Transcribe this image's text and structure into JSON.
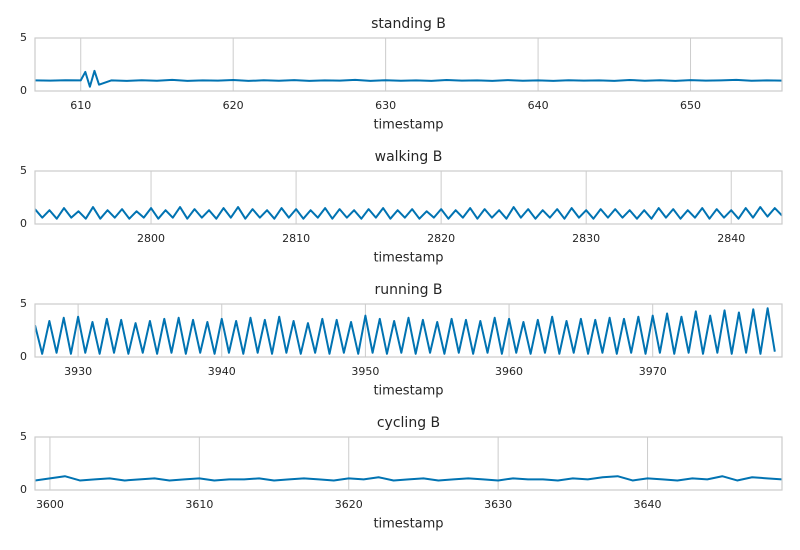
{
  "chart_data": [
    {
      "type": "line",
      "title": "standing B",
      "xlabel": "timestamp",
      "color": "#0173b2",
      "grid": true,
      "xlim": [
        607,
        656
      ],
      "xticks": [
        610,
        620,
        630,
        640,
        650
      ],
      "ylim": [
        0,
        5
      ],
      "yticks": [
        0,
        5
      ],
      "x": [
        607,
        608,
        609,
        610,
        610.3,
        610.6,
        610.9,
        611.2,
        612,
        613,
        614,
        615,
        616,
        617,
        618,
        619,
        620,
        621,
        622,
        623,
        624,
        625,
        626,
        627,
        628,
        629,
        630,
        631,
        632,
        633,
        634,
        635,
        636,
        637,
        638,
        639,
        640,
        641,
        642,
        643,
        644,
        645,
        646,
        647,
        648,
        649,
        650,
        651,
        652,
        653,
        654,
        655,
        656
      ],
      "values": [
        1.0,
        0.98,
        1.02,
        1.0,
        1.8,
        0.4,
        1.9,
        0.6,
        1.0,
        0.95,
        1.02,
        0.97,
        1.05,
        0.96,
        1.0,
        0.98,
        1.04,
        0.95,
        1.01,
        0.97,
        1.03,
        0.96,
        1.0,
        0.98,
        1.05,
        0.95,
        1.02,
        0.97,
        1.0,
        0.96,
        1.04,
        0.98,
        1.0,
        0.95,
        1.03,
        0.97,
        1.0,
        0.96,
        1.02,
        0.98,
        1.0,
        0.95,
        1.04,
        0.97,
        1.01,
        0.96,
        1.03,
        0.98,
        1.0,
        1.05,
        0.97,
        1.0,
        0.98
      ]
    },
    {
      "type": "line",
      "title": "walking B",
      "xlabel": "timestamp",
      "color": "#0173b2",
      "grid": true,
      "xlim": [
        2792,
        2843.5
      ],
      "xticks": [
        2800,
        2810,
        2820,
        2830,
        2840
      ],
      "ylim": [
        0,
        5
      ],
      "yticks": [
        0,
        5
      ],
      "x": [
        2792,
        2792.5,
        2793,
        2793.5,
        2794,
        2794.5,
        2795,
        2795.5,
        2796,
        2796.5,
        2797,
        2797.5,
        2798,
        2798.5,
        2799,
        2799.5,
        2800,
        2800.5,
        2801,
        2801.5,
        2802,
        2802.5,
        2803,
        2803.5,
        2804,
        2804.5,
        2805,
        2805.5,
        2806,
        2806.5,
        2807,
        2807.5,
        2808,
        2808.5,
        2809,
        2809.5,
        2810,
        2810.5,
        2811,
        2811.5,
        2812,
        2812.5,
        2813,
        2813.5,
        2814,
        2814.5,
        2815,
        2815.5,
        2816,
        2816.5,
        2817,
        2817.5,
        2818,
        2818.5,
        2819,
        2819.5,
        2820,
        2820.5,
        2821,
        2821.5,
        2822,
        2822.5,
        2823,
        2823.5,
        2824,
        2824.5,
        2825,
        2825.5,
        2826,
        2826.5,
        2827,
        2827.5,
        2828,
        2828.5,
        2829,
        2829.5,
        2830,
        2830.5,
        2831,
        2831.5,
        2832,
        2832.5,
        2833,
        2833.5,
        2834,
        2834.5,
        2835,
        2835.5,
        2836,
        2836.5,
        2837,
        2837.5,
        2838,
        2838.5,
        2839,
        2839.5,
        2840,
        2840.5,
        2841,
        2841.5,
        2842,
        2842.5,
        2843,
        2843.5
      ],
      "values": [
        1.4,
        0.6,
        1.3,
        0.5,
        1.5,
        0.6,
        1.2,
        0.5,
        1.6,
        0.5,
        1.3,
        0.6,
        1.4,
        0.5,
        1.2,
        0.6,
        1.5,
        0.5,
        1.3,
        0.6,
        1.6,
        0.5,
        1.4,
        0.6,
        1.3,
        0.5,
        1.5,
        0.6,
        1.6,
        0.5,
        1.4,
        0.6,
        1.3,
        0.5,
        1.5,
        0.6,
        1.4,
        0.5,
        1.3,
        0.6,
        1.5,
        0.5,
        1.4,
        0.6,
        1.3,
        0.5,
        1.4,
        0.6,
        1.5,
        0.5,
        1.3,
        0.6,
        1.4,
        0.5,
        1.2,
        0.6,
        1.4,
        0.5,
        1.3,
        0.6,
        1.5,
        0.5,
        1.4,
        0.6,
        1.3,
        0.5,
        1.6,
        0.6,
        1.4,
        0.5,
        1.3,
        0.6,
        1.4,
        0.5,
        1.5,
        0.6,
        1.3,
        0.5,
        1.4,
        0.6,
        1.4,
        0.6,
        1.3,
        0.5,
        1.3,
        0.5,
        1.5,
        0.6,
        1.4,
        0.5,
        1.3,
        0.6,
        1.5,
        0.5,
        1.4,
        0.6,
        1.3,
        0.5,
        1.5,
        0.6,
        1.6,
        0.7,
        1.5,
        0.8
      ]
    },
    {
      "type": "line",
      "title": "running B",
      "xlabel": "timestamp",
      "color": "#0173b2",
      "grid": true,
      "xlim": [
        3927,
        3979
      ],
      "xticks": [
        3930,
        3940,
        3950,
        3960,
        3970
      ],
      "ylim": [
        0,
        5
      ],
      "yticks": [
        0,
        5
      ],
      "x": [
        3927,
        3927.5,
        3928,
        3928.5,
        3929,
        3929.5,
        3930,
        3930.5,
        3931,
        3931.5,
        3932,
        3932.5,
        3933,
        3933.5,
        3934,
        3934.5,
        3935,
        3935.5,
        3936,
        3936.5,
        3937,
        3937.5,
        3938,
        3938.5,
        3939,
        3939.5,
        3940,
        3940.5,
        3941,
        3941.5,
        3942,
        3942.5,
        3943,
        3943.5,
        3944,
        3944.5,
        3945,
        3945.5,
        3946,
        3946.5,
        3947,
        3947.5,
        3948,
        3948.5,
        3949,
        3949.5,
        3950,
        3950.5,
        3951,
        3951.5,
        3952,
        3952.5,
        3953,
        3953.5,
        3954,
        3954.5,
        3955,
        3955.5,
        3956,
        3956.5,
        3957,
        3957.5,
        3958,
        3958.5,
        3959,
        3959.5,
        3960,
        3960.5,
        3961,
        3961.5,
        3962,
        3962.5,
        3963,
        3963.5,
        3964,
        3964.5,
        3965,
        3965.5,
        3966,
        3966.5,
        3967,
        3967.5,
        3968,
        3968.5,
        3969,
        3969.5,
        3970,
        3970.5,
        3971,
        3971.5,
        3972,
        3972.5,
        3973,
        3973.5,
        3974,
        3974.5,
        3975,
        3975.5,
        3976,
        3976.5,
        3977,
        3977.5,
        3978,
        3978.5
      ],
      "values": [
        3.0,
        0.3,
        3.4,
        0.4,
        3.7,
        0.3,
        3.8,
        0.4,
        3.3,
        0.3,
        3.6,
        0.4,
        3.5,
        0.3,
        3.2,
        0.4,
        3.4,
        0.3,
        3.6,
        0.4,
        3.7,
        0.3,
        3.5,
        0.4,
        3.3,
        0.3,
        3.6,
        0.4,
        3.4,
        0.3,
        3.7,
        0.4,
        3.5,
        0.3,
        3.8,
        0.4,
        3.4,
        0.3,
        3.2,
        0.4,
        3.6,
        0.3,
        3.5,
        0.4,
        3.3,
        0.3,
        3.9,
        0.4,
        3.6,
        0.3,
        3.4,
        0.4,
        3.7,
        0.3,
        3.5,
        0.4,
        3.3,
        0.3,
        3.6,
        0.4,
        3.5,
        0.3,
        3.4,
        0.4,
        3.7,
        0.3,
        3.6,
        0.4,
        3.3,
        0.3,
        3.5,
        0.4,
        3.8,
        0.3,
        3.4,
        0.4,
        3.6,
        0.3,
        3.5,
        0.4,
        3.7,
        0.3,
        3.6,
        0.4,
        3.8,
        0.3,
        3.9,
        0.4,
        4.1,
        0.3,
        3.8,
        0.4,
        4.3,
        0.3,
        3.9,
        0.4,
        4.4,
        0.3,
        4.2,
        0.4,
        4.5,
        0.3,
        4.6,
        0.5
      ]
    },
    {
      "type": "line",
      "title": "cycling B",
      "xlabel": "timestamp",
      "color": "#0173b2",
      "grid": true,
      "xlim": [
        3599,
        3649
      ],
      "xticks": [
        3600,
        3610,
        3620,
        3630,
        3640
      ],
      "ylim": [
        0,
        5
      ],
      "yticks": [
        0,
        5
      ],
      "x": [
        3599,
        3600,
        3601,
        3602,
        3603,
        3604,
        3605,
        3606,
        3607,
        3608,
        3609,
        3610,
        3611,
        3612,
        3613,
        3614,
        3615,
        3616,
        3617,
        3618,
        3619,
        3620,
        3621,
        3622,
        3623,
        3624,
        3625,
        3626,
        3627,
        3628,
        3629,
        3630,
        3631,
        3632,
        3633,
        3634,
        3635,
        3636,
        3637,
        3638,
        3639,
        3640,
        3641,
        3642,
        3643,
        3644,
        3645,
        3646,
        3647,
        3648,
        3649
      ],
      "values": [
        0.9,
        1.1,
        1.3,
        0.9,
        1.0,
        1.1,
        0.9,
        1.0,
        1.1,
        0.9,
        1.0,
        1.1,
        0.9,
        1.0,
        1.0,
        1.1,
        0.9,
        1.0,
        1.1,
        1.0,
        0.9,
        1.1,
        1.0,
        1.2,
        0.9,
        1.0,
        1.1,
        0.9,
        1.0,
        1.1,
        1.0,
        0.9,
        1.1,
        1.0,
        1.0,
        0.9,
        1.1,
        1.0,
        1.2,
        1.3,
        0.9,
        1.1,
        1.0,
        0.9,
        1.1,
        1.0,
        1.3,
        0.9,
        1.2,
        1.1,
        1.0
      ]
    }
  ]
}
